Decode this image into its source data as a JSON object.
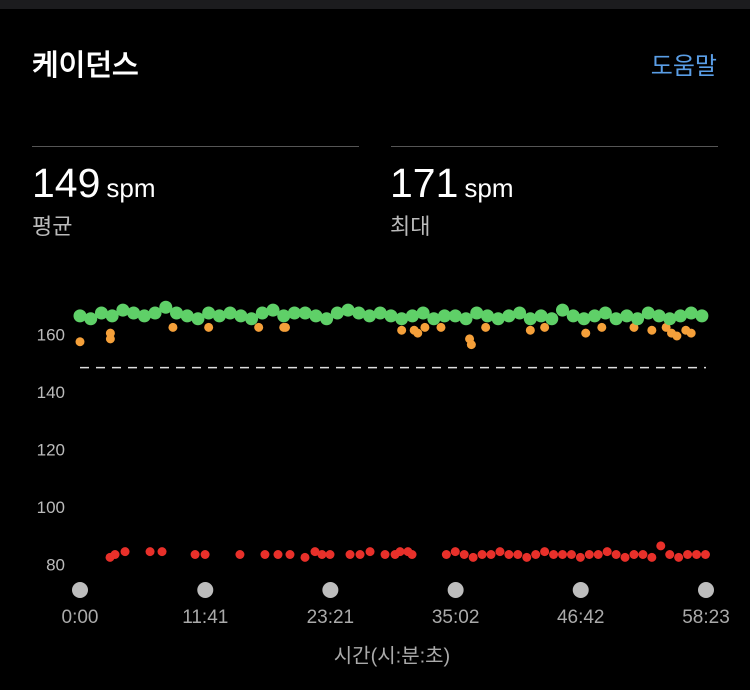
{
  "header": {
    "title": "케이던스",
    "help": "도움말"
  },
  "stats": [
    {
      "value": 149,
      "unit": "spm",
      "label": "평균"
    },
    {
      "value": 171,
      "unit": "spm",
      "label": "최대"
    }
  ],
  "chart_data": {
    "type": "scatter",
    "x_label": "시간(시:분:초)",
    "xlim": [
      0,
      3503
    ],
    "ylim": [
      72,
      176
    ],
    "xticks": [
      {
        "value": 0,
        "label": "0:00"
      },
      {
        "value": 701,
        "label": "11:41"
      },
      {
        "value": 1401,
        "label": "23:21"
      },
      {
        "value": 2102,
        "label": "35:02"
      },
      {
        "value": 2802,
        "label": "46:42"
      },
      {
        "value": 3503,
        "label": "58:23"
      }
    ],
    "yticks": [
      80,
      100,
      120,
      140,
      160
    ],
    "series": [
      {
        "color": "#e8302a",
        "x": [
          168,
          196,
          252,
          392,
          459,
          644,
          700,
          895,
          1035,
          1108,
          1175,
          1259,
          1315,
          1354,
          1399,
          1511,
          1567,
          1623,
          1707,
          1763,
          1791,
          1835,
          1858,
          2050,
          2100,
          2150,
          2200,
          2250,
          2300,
          2350,
          2400,
          2450,
          2500,
          2550,
          2600,
          2650,
          2700,
          2750,
          2800,
          2850,
          2900,
          2950,
          3000,
          3050,
          3100,
          3150,
          3200,
          3250,
          3300,
          3350,
          3400,
          3450,
          3500
        ],
        "values": [
          83,
          84,
          85,
          85,
          85,
          84,
          84,
          84,
          84,
          84,
          84,
          83,
          85,
          84,
          84,
          84,
          84,
          85,
          84,
          84,
          85,
          85,
          84,
          84,
          85,
          84,
          83,
          84,
          84,
          85,
          84,
          84,
          83,
          84,
          85,
          84,
          84,
          84,
          83,
          84,
          84,
          85,
          84,
          83,
          84,
          84,
          83,
          87,
          84,
          83,
          84,
          84,
          84
        ]
      },
      {
        "color": "#f5a03a",
        "x": [
          0,
          170,
          170,
          520,
          720,
          1000,
          1140,
          1150,
          1800,
          1870,
          1890,
          1930,
          2020,
          2180,
          2190,
          2270,
          2520,
          2600,
          2830,
          2920,
          3100,
          3200,
          3280,
          3310,
          3340,
          3390,
          3420
        ],
        "values": [
          158,
          161,
          159,
          163,
          163,
          163,
          163,
          163,
          162,
          162,
          161,
          163,
          163,
          159,
          157,
          163,
          162,
          163,
          161,
          163,
          163,
          162,
          163,
          161,
          160,
          162,
          161
        ]
      },
      {
        "color": "#5fd068",
        "x": [
          0,
          60,
          120,
          180,
          240,
          300,
          360,
          420,
          480,
          540,
          600,
          660,
          720,
          780,
          840,
          900,
          960,
          1020,
          1080,
          1140,
          1200,
          1260,
          1320,
          1380,
          1440,
          1500,
          1560,
          1620,
          1680,
          1740,
          1800,
          1860,
          1920,
          1980,
          2040,
          2100,
          2160,
          2220,
          2280,
          2340,
          2400,
          2460,
          2520,
          2580,
          2640,
          2700,
          2760,
          2820,
          2880,
          2940,
          3000,
          3060,
          3120,
          3180,
          3240,
          3300,
          3360,
          3420,
          3480
        ],
        "values": [
          167,
          166,
          168,
          167,
          169,
          168,
          167,
          168,
          170,
          168,
          167,
          166,
          168,
          167,
          168,
          167,
          166,
          168,
          169,
          167,
          168,
          168,
          167,
          166,
          168,
          169,
          168,
          167,
          168,
          167,
          166,
          167,
          168,
          166,
          167,
          167,
          166,
          168,
          167,
          166,
          167,
          168,
          166,
          167,
          166,
          169,
          167,
          166,
          167,
          168,
          166,
          167,
          166,
          168,
          167,
          166,
          167,
          168,
          167
        ]
      }
    ]
  }
}
